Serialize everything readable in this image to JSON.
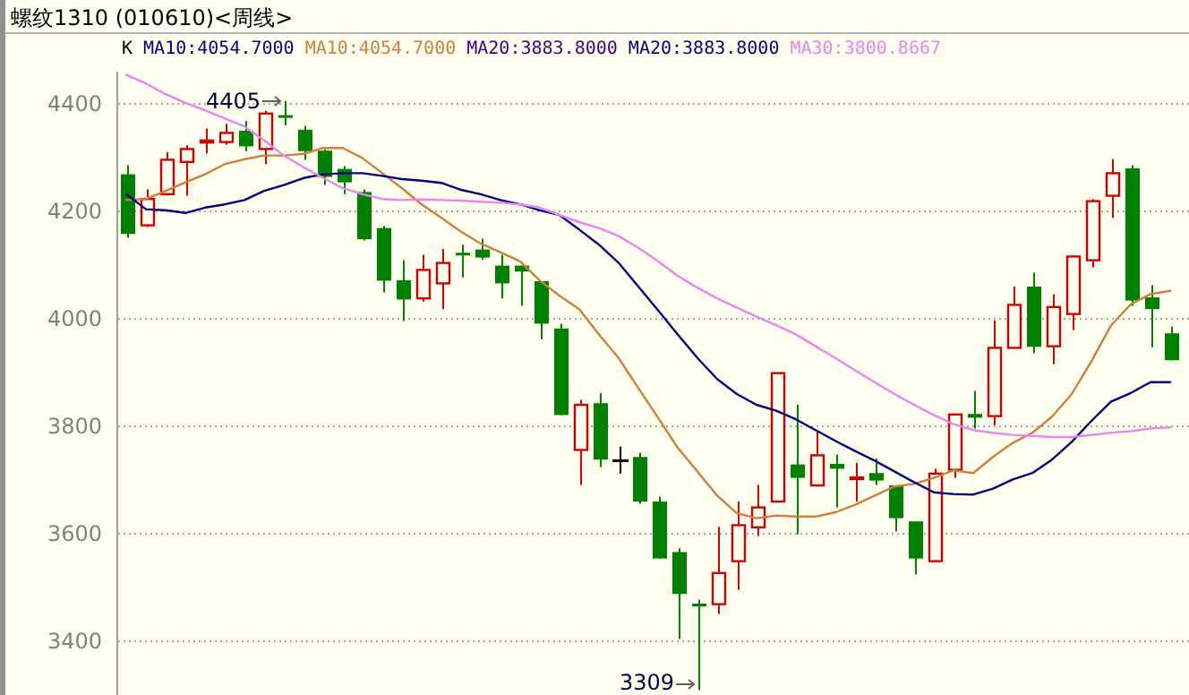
{
  "chart_data": {
    "type": "candlestick",
    "title": "螺纹1310 (010610)<周线>",
    "categories": [
      null,
      null,
      null,
      null,
      null,
      null,
      null,
      null,
      null,
      null,
      null,
      null,
      null,
      null,
      null,
      null,
      null,
      null,
      null,
      null,
      null,
      null,
      null,
      null,
      null,
      null,
      null,
      null,
      null,
      null,
      null,
      null,
      null,
      null,
      null,
      null,
      null,
      null,
      null,
      null,
      null,
      null,
      null,
      null,
      null,
      null,
      null,
      null,
      null,
      null,
      null,
      null,
      null,
      null
    ],
    "ohlc": [
      [
        4269,
        4286,
        4151,
        4158
      ],
      [
        4174,
        4241,
        4171,
        4223
      ],
      [
        4232,
        4310,
        4229,
        4296
      ],
      [
        4292,
        4323,
        4229,
        4316
      ],
      [
        4328,
        4354,
        4308,
        4332
      ],
      [
        4329,
        4363,
        4324,
        4346
      ],
      [
        4350,
        4368,
        4312,
        4321
      ],
      [
        4316,
        4387,
        4288,
        4382
      ],
      [
        4379,
        4405,
        4360,
        4375
      ],
      [
        4352,
        4359,
        4296,
        4312
      ],
      [
        4313,
        4316,
        4249,
        4264
      ],
      [
        4279,
        4284,
        4232,
        4254
      ],
      [
        4236,
        4241,
        4146,
        4148
      ],
      [
        4169,
        4173,
        4049,
        4071
      ],
      [
        4072,
        4109,
        3996,
        4036
      ],
      [
        4038,
        4119,
        4032,
        4091
      ],
      [
        4066,
        4130,
        4018,
        4104
      ],
      [
        4123,
        4138,
        4077,
        4119
      ],
      [
        4129,
        4149,
        4110,
        4114
      ],
      [
        4099,
        4119,
        4038,
        4066
      ],
      [
        4099,
        4099,
        4024,
        4088
      ],
      [
        4070,
        4070,
        3962,
        3991
      ],
      [
        3982,
        3991,
        3821,
        3821
      ],
      [
        3756,
        3849,
        3691,
        3840
      ],
      [
        3843,
        3862,
        3724,
        3738
      ],
      [
        3736,
        3762,
        3712,
        3736
      ],
      [
        3743,
        3751,
        3656,
        3660
      ],
      [
        3660,
        3669,
        3554,
        3554
      ],
      [
        3566,
        3573,
        3404,
        3488
      ],
      [
        3470,
        3477,
        3309,
        3468
      ],
      [
        3469,
        3613,
        3451,
        3527
      ],
      [
        3549,
        3660,
        3496,
        3616
      ],
      [
        3612,
        3691,
        3596,
        3649
      ],
      [
        3660,
        3899,
        3660,
        3899
      ],
      [
        3729,
        3840,
        3599,
        3704
      ],
      [
        3690,
        3790,
        3690,
        3746
      ],
      [
        3730,
        3747,
        3649,
        3721
      ],
      [
        3703,
        3732,
        3660,
        3705
      ],
      [
        3713,
        3740,
        3691,
        3699
      ],
      [
        3690,
        3690,
        3604,
        3629
      ],
      [
        3623,
        3623,
        3524,
        3554
      ],
      [
        3549,
        3721,
        3549,
        3712
      ],
      [
        3719,
        3822,
        3704,
        3822
      ],
      [
        3823,
        3866,
        3796,
        3816
      ],
      [
        3819,
        3997,
        3802,
        3946
      ],
      [
        3946,
        4060,
        3946,
        4026
      ],
      [
        4060,
        4086,
        3936,
        3948
      ],
      [
        3949,
        4046,
        3916,
        4022
      ],
      [
        4009,
        4116,
        3979,
        4116
      ],
      [
        4109,
        4223,
        4096,
        4219
      ],
      [
        4229,
        4297,
        4188,
        4271
      ],
      [
        4280,
        4286,
        4024,
        4034
      ],
      [
        4040,
        4063,
        3947,
        4018
      ],
      [
        3973,
        3986,
        3923,
        3923
      ]
    ],
    "series": [
      {
        "name": "MA10:4054.7000",
        "type": "line",
        "color": "#d27d3c",
        "values": [
          4221,
          4223,
          4238,
          4254,
          4269,
          4288,
          4297,
          4304,
          4304,
          4307,
          4318,
          4318,
          4299,
          4271,
          4243,
          4213,
          4188,
          4162,
          4140,
          4124,
          4107,
          4071,
          4043,
          4018,
          3971,
          3927,
          3871,
          3816,
          3760,
          3716,
          3671,
          3638,
          3629,
          3634,
          3632,
          3632,
          3640,
          3654,
          3671,
          3688,
          3693,
          3704,
          3718,
          3713,
          3743,
          3769,
          3788,
          3818,
          3860,
          3921,
          3988,
          4027,
          4046,
          4052
        ]
      },
      {
        "name": "MA20:3883.8000",
        "type": "line",
        "color": "#000080",
        "values": [
          4232,
          4204,
          4202,
          4197,
          4207,
          4213,
          4221,
          4238,
          4249,
          4262,
          4269,
          4271,
          4271,
          4266,
          4260,
          4257,
          4253,
          4240,
          4232,
          4221,
          4213,
          4202,
          4193,
          4166,
          4138,
          4104,
          4060,
          4016,
          3971,
          3927,
          3888,
          3860,
          3840,
          3829,
          3813,
          3793,
          3773,
          3754,
          3736,
          3716,
          3696,
          3677,
          3674,
          3673,
          3684,
          3701,
          3713,
          3738,
          3771,
          3810,
          3846,
          3862,
          3882,
          3882
        ]
      },
      {
        "name": "MA30:3800.8667",
        "type": "line",
        "color": "#ee82ee",
        "values": [
          4454,
          4438,
          4418,
          4402,
          4388,
          4373,
          4358,
          4332,
          4304,
          4282,
          4262,
          4243,
          4232,
          4223,
          4221,
          4222,
          4221,
          4220,
          4218,
          4216,
          4213,
          4207,
          4193,
          4180,
          4169,
          4154,
          4132,
          4107,
          4080,
          4058,
          4038,
          4021,
          4004,
          3988,
          3971,
          3949,
          3927,
          3904,
          3882,
          3860,
          3840,
          3821,
          3804,
          3793,
          3788,
          3784,
          3782,
          3780,
          3780,
          3784,
          3788,
          3791,
          3796,
          3798
        ]
      }
    ],
    "ylim": [
      3300,
      4460
    ],
    "yticks": [
      3400,
      3600,
      3800,
      4000,
      4200,
      4400
    ],
    "grid": "y",
    "legend": "top left",
    "annotations": [
      "K",
      "MA10:4054.7000",
      "MA20:3883.8000",
      "4405",
      "3309"
    ]
  }
}
